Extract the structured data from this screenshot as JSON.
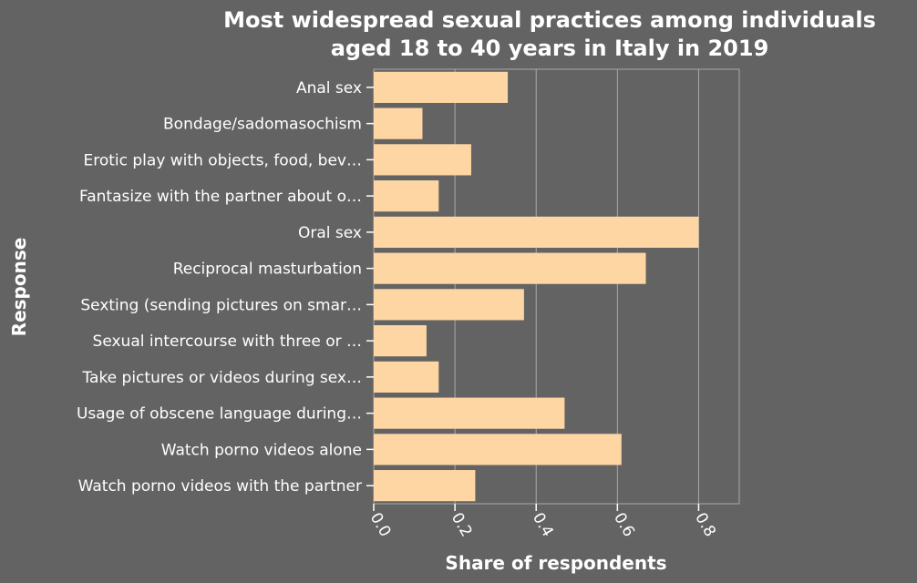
{
  "chart_data": {
    "type": "bar",
    "orientation": "horizontal",
    "title_lines": [
      "Most widespread sexual practices among individuals",
      "aged 18 to 40 years in Italy in 2019"
    ],
    "xlabel": "Share of respondents",
    "ylabel": "Response",
    "xlim": [
      0,
      0.9
    ],
    "xticks": [
      "0.0",
      "0.2",
      "0.4",
      "0.6",
      "0.8"
    ],
    "xtick_values": [
      0.0,
      0.2,
      0.4,
      0.6,
      0.8
    ],
    "grid": true,
    "categories": [
      "Anal sex",
      "Bondage/sadomasochism",
      "Erotic play with objects, food, bev…",
      "Fantasize with the partner about o…",
      "Oral sex",
      "Reciprocal masturbation",
      "Sexting (sending pictures on smar…",
      "Sexual intercourse with three or …",
      "Take pictures or videos during sex…",
      "Usage of obscene language during…",
      "Watch porno videos alone",
      "Watch porno videos with the partner"
    ],
    "values": [
      0.33,
      0.12,
      0.24,
      0.16,
      0.8,
      0.67,
      0.37,
      0.13,
      0.16,
      0.47,
      0.61,
      0.25
    ],
    "colors": {
      "background": "#636363",
      "plot_area": "#636363",
      "bar": "#fed6a3",
      "grid": "#a8a8a8",
      "text": "#ffffff"
    }
  }
}
